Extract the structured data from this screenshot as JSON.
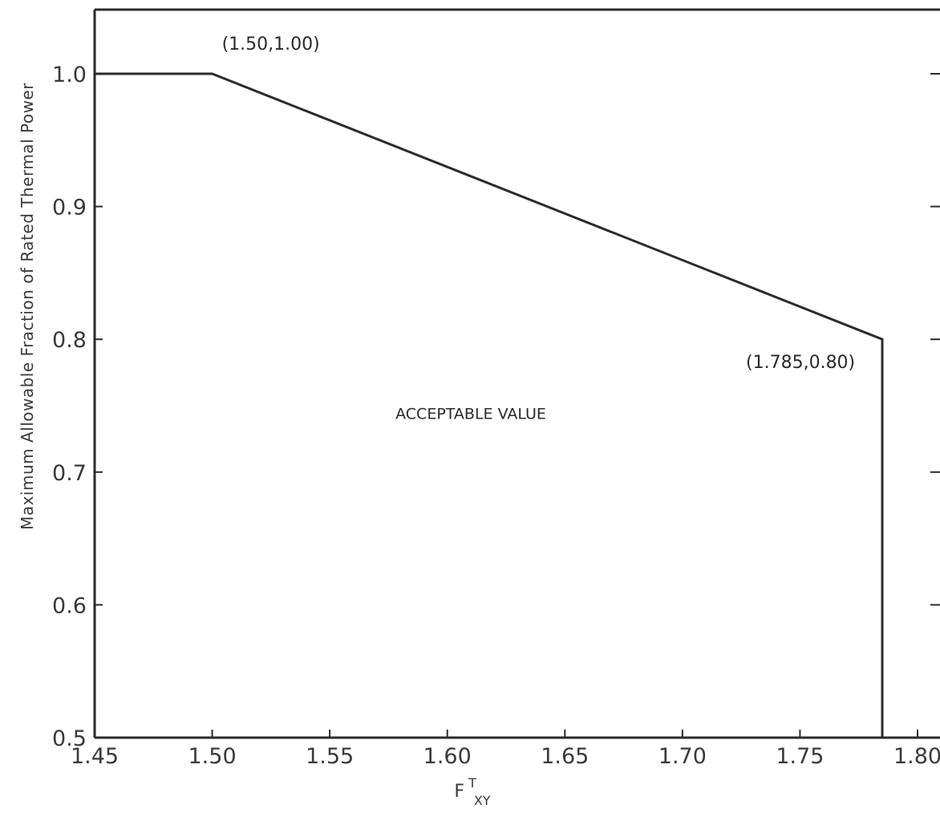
{
  "chart_data": {
    "type": "line",
    "title": "",
    "xlabel": "F",
    "xlabel_sup": "T",
    "xlabel_sub": "XY",
    "ylabel": "Maximum Allowable Fraction of Rated Thermal Power",
    "xlim": [
      1.45,
      1.82
    ],
    "ylim": [
      0.5,
      1.05
    ],
    "xticks": [
      1.45,
      1.5,
      1.55,
      1.6,
      1.65,
      1.7,
      1.75,
      1.8
    ],
    "xtick_labels": [
      "1.45",
      "1.50",
      "1.55",
      "1.60",
      "1.65",
      "1.70",
      "1.75",
      "1.80"
    ],
    "yticks": [
      0.5,
      0.6,
      0.7,
      0.8,
      0.9,
      1.0
    ],
    "ytick_labels": [
      "0.5",
      "0.6",
      "0.7",
      "0.8",
      "0.9",
      "1.0"
    ],
    "series": [
      {
        "x": [
          1.45,
          1.5,
          1.785,
          1.785
        ],
        "y": [
          1.0,
          1.0,
          0.8,
          0.5
        ]
      }
    ],
    "annotations": [
      {
        "text": "(1.50,1.00)",
        "x": 1.5,
        "y": 1.0
      },
      {
        "text": "(1.785,0.80)",
        "x": 1.785,
        "y": 0.8
      },
      {
        "text": "ACCEPTABLE VALUE",
        "x": 1.61,
        "y": 0.74
      }
    ],
    "grid": false,
    "line_color": "#2b2b2b"
  }
}
